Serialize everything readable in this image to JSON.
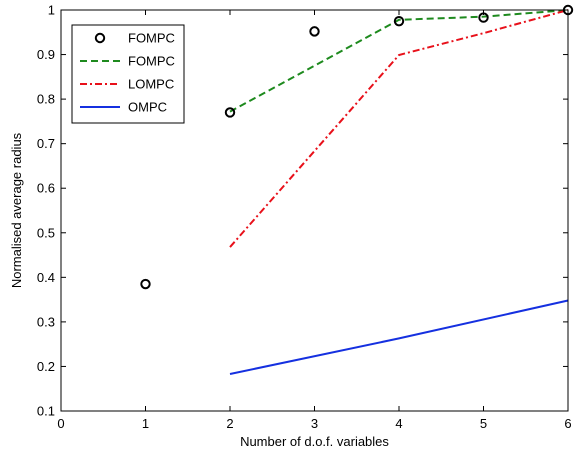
{
  "chart_data": {
    "type": "line",
    "xlabel": "Number of d.o.f. variables",
    "ylabel": "Normalised average radius",
    "xlim": [
      0,
      6
    ],
    "ylim": [
      0.1,
      1
    ],
    "x_ticks": [
      "0",
      "1",
      "2",
      "3",
      "4",
      "5",
      "6"
    ],
    "y_ticks": [
      "0.1",
      "0.2",
      "0.3",
      "0.4",
      "0.5",
      "0.6",
      "0.7",
      "0.8",
      "0.9",
      "1"
    ],
    "x_tick_values": [
      0,
      1,
      2,
      3,
      4,
      5,
      6
    ],
    "y_tick_values": [
      0.1,
      0.2,
      0.3,
      0.4,
      0.5,
      0.6,
      0.7,
      0.8,
      0.9,
      1.0
    ],
    "grid": false,
    "legend_position": "top-left",
    "series": [
      {
        "name": "FOMPC",
        "style": "markers",
        "marker": "circle",
        "color": "#000000",
        "x": [
          1,
          2,
          3,
          4,
          5,
          6
        ],
        "y": [
          0.385,
          0.77,
          0.952,
          0.975,
          0.983,
          1.0
        ]
      },
      {
        "name": "FOMPC",
        "style": "dashed",
        "color": "#1e8a1e",
        "x": [
          2,
          4,
          5,
          6
        ],
        "y": [
          0.772,
          0.978,
          0.985,
          1.0
        ]
      },
      {
        "name": "LOMPC",
        "style": "dashdot",
        "color": "#e8101a",
        "x": [
          2,
          4,
          5,
          6
        ],
        "y": [
          0.468,
          0.899,
          0.948,
          1.0
        ]
      },
      {
        "name": "OMPC",
        "style": "solid",
        "color": "#1530e0",
        "x": [
          2,
          4,
          6
        ],
        "y": [
          0.183,
          0.263,
          0.348
        ]
      }
    ]
  }
}
